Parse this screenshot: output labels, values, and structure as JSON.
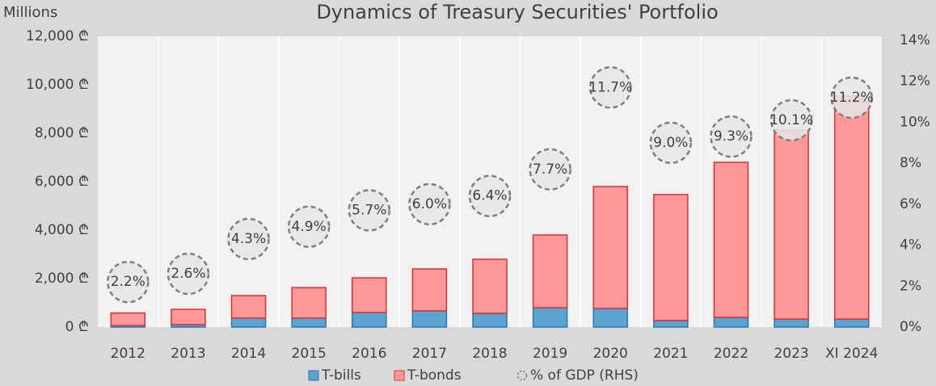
{
  "chart_data": {
    "type": "bar",
    "stacked": true,
    "title": "Dynamics of Treasury Securities' Portfolio",
    "y_label": "Millions",
    "categories": [
      "2012",
      "2013",
      "2014",
      "2015",
      "2016",
      "2017",
      "2018",
      "2019",
      "2020",
      "2021",
      "2022",
      "2023",
      "XI 2024"
    ],
    "series": [
      {
        "name": "T-bills",
        "color": "#5ba3d0",
        "values": [
          60,
          100,
          370,
          370,
          600,
          670,
          570,
          800,
          770,
          270,
          400,
          330,
          330
        ]
      },
      {
        "name": "T-bonds",
        "color": "#ff9999",
        "values": [
          520,
          630,
          930,
          1260,
          1430,
          1730,
          2230,
          3000,
          5030,
          5200,
          6400,
          7800,
          9200
        ]
      },
      {
        "name": "% of GDP (RHS)",
        "color": "#7f7f7f",
        "axis": "y2",
        "values": [
          2.2,
          2.6,
          4.3,
          4.9,
          5.7,
          6.0,
          6.4,
          7.7,
          11.7,
          9.0,
          9.3,
          10.1,
          11.2
        ],
        "value_labels": [
          "2.2%",
          "2.6%",
          "4.3%",
          "4.9%",
          "5.7%",
          "6.0%",
          "6.4%",
          "7.7%",
          "11.7%",
          "9.0%",
          "9.3%",
          "10.1%",
          "11.2%"
        ]
      }
    ],
    "ylim": [
      0,
      12000
    ],
    "yticks": [
      {
        "value": 0,
        "label": "0 ₾"
      },
      {
        "value": 2000,
        "label": "2,000 ₾"
      },
      {
        "value": 4000,
        "label": "4,000 ₾"
      },
      {
        "value": 6000,
        "label": "6,000 ₾"
      },
      {
        "value": 8000,
        "label": "8,000 ₾"
      },
      {
        "value": 10000,
        "label": "10,000 ₾"
      },
      {
        "value": 12000,
        "label": "12,000 ₾"
      }
    ],
    "y2lim": [
      0,
      14
    ],
    "y2ticks": [
      {
        "value": 0,
        "label": "0%"
      },
      {
        "value": 2,
        "label": "2%"
      },
      {
        "value": 4,
        "label": "4%"
      },
      {
        "value": 6,
        "label": "6%"
      },
      {
        "value": 8,
        "label": "8%"
      },
      {
        "value": 10,
        "label": "10%"
      },
      {
        "value": 12,
        "label": "12%"
      },
      {
        "value": 14,
        "label": "14%"
      }
    ],
    "legend": "bottom"
  }
}
